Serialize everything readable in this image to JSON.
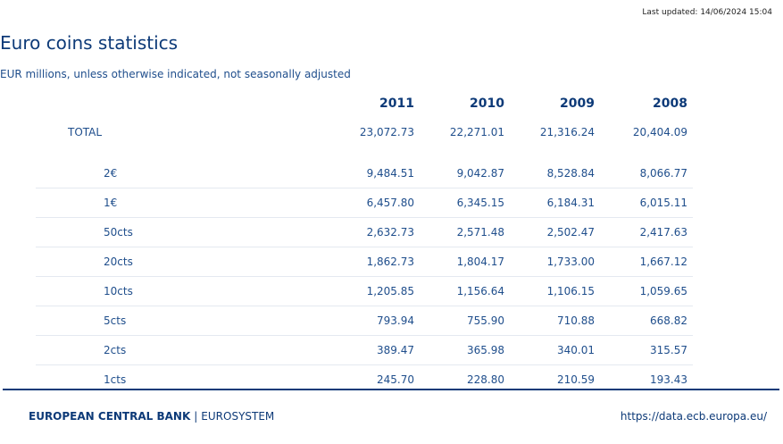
{
  "header": {
    "last_updated": "Last updated: 14/06/2024 15:04",
    "title": "Euro coins statistics",
    "subtitle": "EUR millions, unless otherwise indicated, not seasonally adjusted"
  },
  "table": {
    "columns": [
      "2011",
      "2010",
      "2009",
      "2008"
    ],
    "total": {
      "label": "TOTAL",
      "values": [
        "23,072.73",
        "22,271.01",
        "21,316.24",
        "20,404.09"
      ]
    },
    "rows": [
      {
        "label": "2€",
        "values": [
          "9,484.51",
          "9,042.87",
          "8,528.84",
          "8,066.77"
        ]
      },
      {
        "label": "1€",
        "values": [
          "6,457.80",
          "6,345.15",
          "6,184.31",
          "6,015.11"
        ]
      },
      {
        "label": "50cts",
        "values": [
          "2,632.73",
          "2,571.48",
          "2,502.47",
          "2,417.63"
        ]
      },
      {
        "label": "20cts",
        "values": [
          "1,862.73",
          "1,804.17",
          "1,733.00",
          "1,667.12"
        ]
      },
      {
        "label": "10cts",
        "values": [
          "1,205.85",
          "1,156.64",
          "1,106.15",
          "1,059.65"
        ]
      },
      {
        "label": "5cts",
        "values": [
          "793.94",
          "755.90",
          "710.88",
          "668.82"
        ]
      },
      {
        "label": "2cts",
        "values": [
          "389.47",
          "365.98",
          "340.01",
          "315.57"
        ]
      },
      {
        "label": "1cts",
        "values": [
          "245.70",
          "228.80",
          "210.59",
          "193.43"
        ]
      }
    ]
  },
  "footer": {
    "org": "EUROPEAN CENTRAL BANK",
    "separator": "|",
    "system": "EUROSYSTEM",
    "url": "https://data.ecb.europa.eu/"
  },
  "colors": {
    "primary": "#0d3a78",
    "text": "#1f4e8c",
    "row_divider": "#e4e9f0"
  }
}
